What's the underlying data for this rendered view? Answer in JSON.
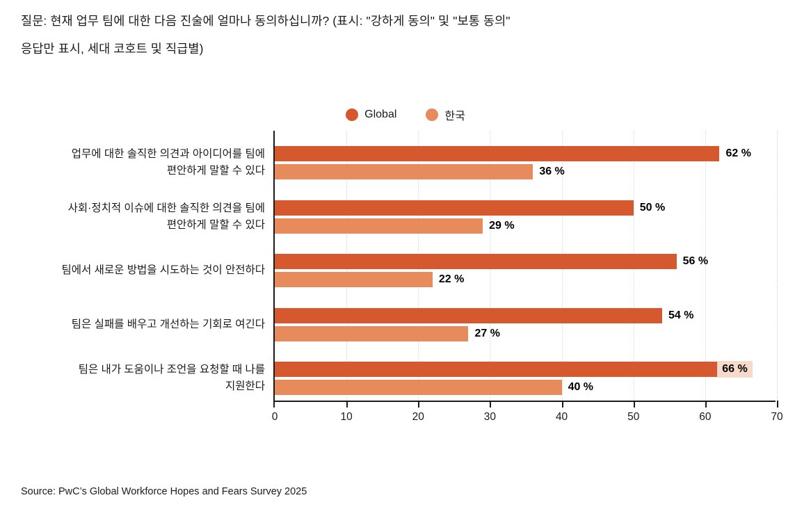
{
  "title": {
    "line1": "질문: 현재 업무 팀에 대한 다음 진술에 얼마나 동의하십니까? (표시: \"강하게 동의\" 및 \"보통 동의\"",
    "line2": "응답만 표시, 세대 코호트 및 직급별)"
  },
  "legend": {
    "items": [
      {
        "label": "Global",
        "color": "#d6582e"
      },
      {
        "label": "한국",
        "color": "#e78b5c"
      }
    ]
  },
  "chart_data": {
    "type": "bar",
    "orientation": "horizontal",
    "title": "질문: 현재 업무 팀에 대한 다음 진술에 얼마나 동의하십니까? (표시: \"강하게 동의\" 및 \"보통 동의\" 응답만 표시, 세대 코호트 및 직급별)",
    "categories": [
      [
        "업무에 대한 솔직한 의견과 아이디어를 팀에",
        "편안하게 말할 수 있다"
      ],
      [
        "사회·정치적 이슈에 대한 솔직한 의견을 팀에",
        "편안하게 말할 수 있다"
      ],
      [
        "팀에서 새로운 방법을 시도하는 것이 안전하다"
      ],
      [
        "팀은 실패를 배우고 개선하는 기회로 여긴다"
      ],
      [
        "팀은 내가 도움이나 조언을 요청할 때 나를",
        "지원한다"
      ]
    ],
    "series": [
      {
        "name": "Global",
        "color": "#d6582e",
        "values": [
          62,
          50,
          56,
          54,
          66
        ]
      },
      {
        "name": "한국",
        "color": "#e78b5c",
        "values": [
          36,
          29,
          22,
          27,
          40
        ]
      }
    ],
    "value_suffix": " %",
    "xlim": [
      0,
      70
    ],
    "xticks": [
      0,
      10,
      20,
      30,
      40,
      50,
      60,
      70
    ],
    "grid": "vertical-dotted-every-10",
    "gridline_color": "#d9d9d9",
    "legend_position": "top-center",
    "overlap_label_bg": "#f7dacb",
    "xlabel": "",
    "ylabel": ""
  },
  "source": "Source: PwC’s Global Workforce Hopes and Fears Survey 2025"
}
